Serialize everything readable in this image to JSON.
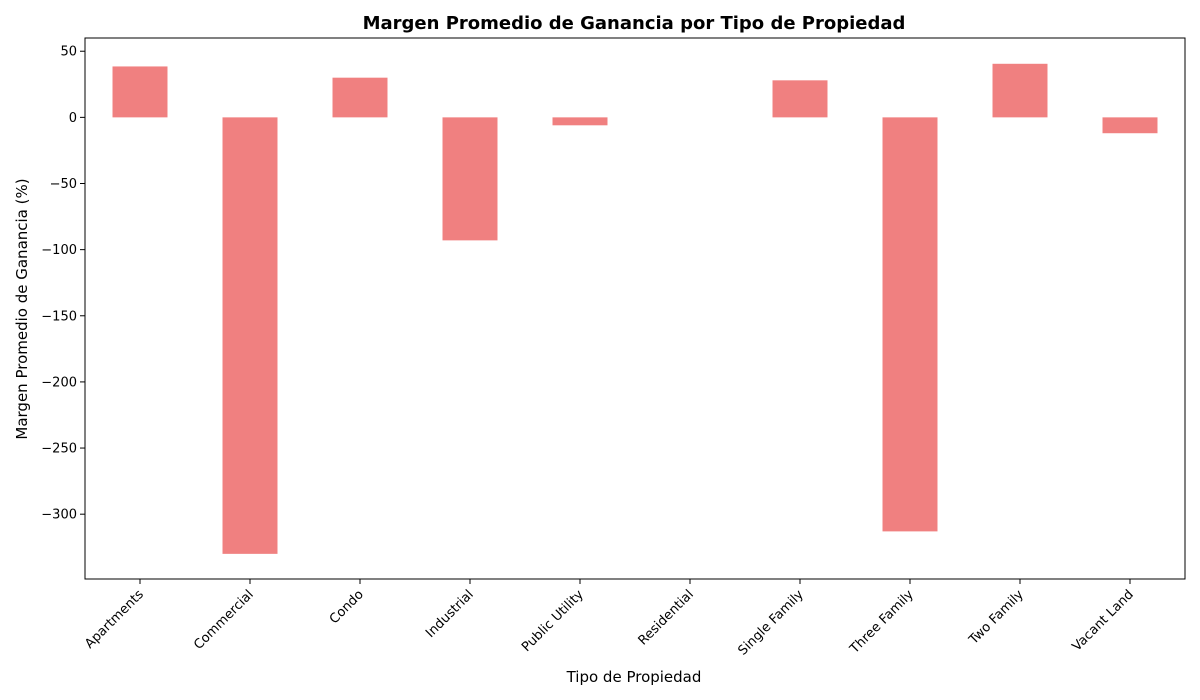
{
  "chart_data": {
    "type": "bar",
    "title": "Margen Promedio de Ganancia por Tipo de Propiedad",
    "xlabel": "Tipo de Propiedad",
    "ylabel": "Margen Promedio de Ganancia (%)",
    "categories": [
      "Apartments",
      "Commercial",
      "Condo",
      "Industrial",
      "Public Utility",
      "Residential",
      "Single Family",
      "Three Family",
      "Two Family",
      "Vacant Land"
    ],
    "values": [
      38.5,
      -330,
      30,
      -93,
      -6,
      0,
      28,
      -313,
      40.5,
      -12
    ],
    "ylim": [
      -349,
      60
    ],
    "yticks": [
      50,
      0,
      -50,
      -100,
      -150,
      -200,
      -250,
      -300
    ],
    "ytick_labels": [
      "50",
      "0",
      "−50",
      "−100",
      "−150",
      "−200",
      "−250",
      "−300"
    ],
    "bar_color": "#f08080",
    "grid": false,
    "legend": "none"
  }
}
